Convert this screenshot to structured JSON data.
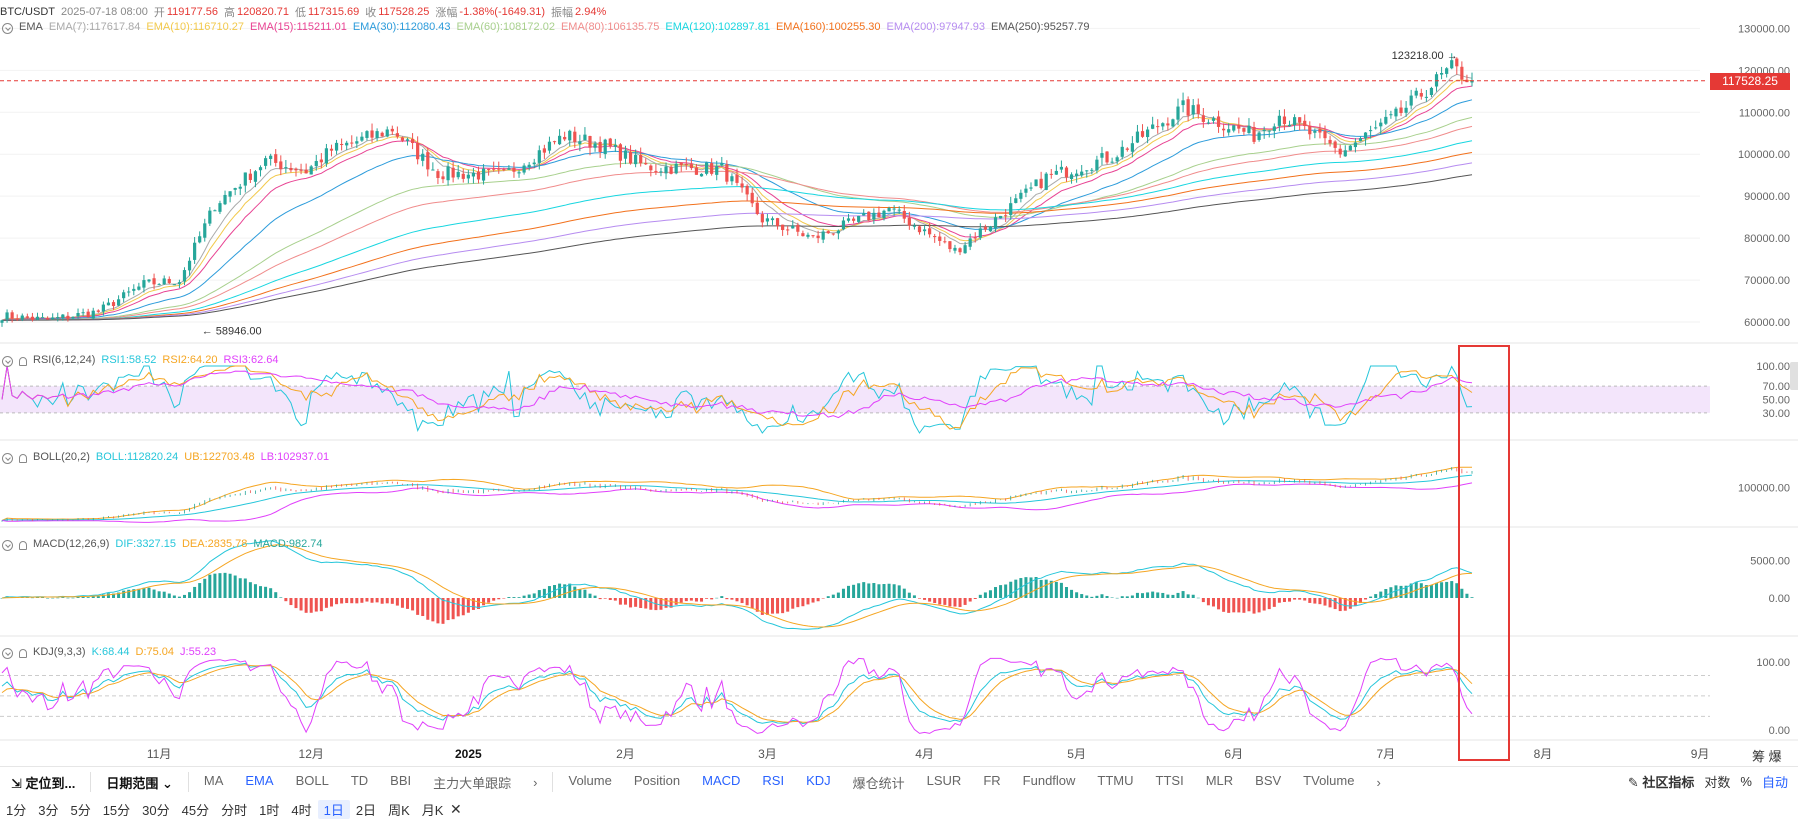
{
  "header": {
    "pair": "BTC/USDT",
    "datetime": "2025-07-18 08:00",
    "open_label": "开",
    "open": "119177.56",
    "high_label": "高",
    "high": "120820.71",
    "low_label": "低",
    "low": "117315.69",
    "close_label": "收",
    "close": "117528.25",
    "change_label": "涨幅",
    "change": "-1.38%(-1649.31)",
    "amp_label": "振幅",
    "amp": "2.94%"
  },
  "ema_legend": {
    "name": "EMA",
    "items": [
      {
        "label": "EMA(7):117617.84",
        "color": "#aaaaaa"
      },
      {
        "label": "EMA(10):116710.27",
        "color": "#f2c94c"
      },
      {
        "label": "EMA(15):115211.01",
        "color": "#e84393"
      },
      {
        "label": "EMA(30):112080.43",
        "color": "#2d9cdb"
      },
      {
        "label": "EMA(60):108172.02",
        "color": "#a8d08d"
      },
      {
        "label": "EMA(80):106135.75",
        "color": "#f08c8c"
      },
      {
        "label": "EMA(120):102897.81",
        "color": "#18d6e0"
      },
      {
        "label": "EMA(160):100255.30",
        "color": "#f2711c"
      },
      {
        "label": "EMA(200):97947.93",
        "color": "#b68cf0"
      },
      {
        "label": "EMA(250):95257.79",
        "color": "#555555"
      }
    ]
  },
  "rsi_legend": {
    "name": "RSI(6,12,24)",
    "items": [
      {
        "label": "RSI1:58.52",
        "color": "#26c6da"
      },
      {
        "label": "RSI2:64.20",
        "color": "#f5a623"
      },
      {
        "label": "RSI3:62.64",
        "color": "#e040fb"
      }
    ]
  },
  "boll_legend": {
    "name": "BOLL(20,2)",
    "items": [
      {
        "label": "BOLL:112820.24",
        "color": "#26c6da"
      },
      {
        "label": "UB:122703.48",
        "color": "#f5a623"
      },
      {
        "label": "LB:102937.01",
        "color": "#e040fb"
      }
    ]
  },
  "macd_legend": {
    "name": "MACD(12,26,9)",
    "items": [
      {
        "label": "DIF:3327.15",
        "color": "#26c6da"
      },
      {
        "label": "DEA:2835.78",
        "color": "#f5a623"
      },
      {
        "label": "MACD:982.74",
        "color": "#26a69a"
      }
    ]
  },
  "kdj_legend": {
    "name": "KDJ(9,3,3)",
    "items": [
      {
        "label": "K:68.44",
        "color": "#26c6da"
      },
      {
        "label": "D:75.04",
        "color": "#f5a623"
      },
      {
        "label": "J:55.23",
        "color": "#e040fb"
      }
    ]
  },
  "annotations": {
    "high_mark": "123218.00",
    "low_mark": "58946.00",
    "last_price": "117528.25"
  },
  "axes": {
    "price_ticks": [
      "130000.00",
      "120000.00",
      "110000.00",
      "100000.00",
      "90000.00",
      "80000.00",
      "70000.00",
      "60000.00"
    ],
    "rsi_ticks": [
      "100.00",
      "70.00",
      "50.00",
      "30.00"
    ],
    "boll_ticks": [
      "100000.00"
    ],
    "macd_ticks": [
      "5000.00",
      "0.00"
    ],
    "kdj_ticks": [
      "100.00",
      "0.00"
    ],
    "time_ticks": [
      "11月",
      "12月",
      "2025",
      "2月",
      "3月",
      "4月",
      "5月",
      "6月",
      "7月",
      "8月",
      "9月"
    ]
  },
  "toolbar": {
    "locate": "定位到...",
    "range": "日期范围",
    "main_indicators": [
      "MA",
      "EMA",
      "BOLL",
      "TD",
      "BBI",
      "主力大单跟踪"
    ],
    "sub_indicators": [
      "Volume",
      "Position",
      "MACD",
      "RSI",
      "KDJ",
      "爆仓统计",
      "LSUR",
      "FR",
      "Fundflow",
      "TTMU",
      "TTSI",
      "MLR",
      "BSV",
      "TVolume"
    ],
    "community": "社区指标",
    "log": "对数",
    "pct": "%",
    "auto": "自动",
    "extra": "筹 爆"
  },
  "intervals": [
    "1分",
    "3分",
    "5分",
    "15分",
    "30分",
    "45分",
    "分时",
    "1时",
    "4时",
    "1日",
    "2日",
    "周K",
    "月K"
  ],
  "active_interval": "1日",
  "chart_data": {
    "type": "candlestick",
    "title": "BTC/USDT",
    "x_range": [
      "2024-10-01",
      "2025-07-18"
    ],
    "ylim": [
      55000,
      132000
    ],
    "close_anchors": [
      [
        "2024-10-01",
        61500
      ],
      [
        "2024-10-10",
        60500
      ],
      [
        "2024-10-20",
        62500
      ],
      [
        "2024-10-29",
        69000
      ],
      [
        "2024-11-05",
        70000
      ],
      [
        "2024-11-12",
        88000
      ],
      [
        "2024-11-22",
        98500
      ],
      [
        "2024-11-30",
        96000
      ],
      [
        "2024-12-05",
        101000
      ],
      [
        "2024-12-17",
        106000
      ],
      [
        "2024-12-26",
        95500
      ],
      [
        "2025-01-08",
        95000
      ],
      [
        "2025-01-20",
        104500
      ],
      [
        "2025-01-28",
        102000
      ],
      [
        "2025-02-05",
        97000
      ],
      [
        "2025-02-20",
        96500
      ],
      [
        "2025-02-28",
        84500
      ],
      [
        "2025-03-10",
        80000
      ],
      [
        "2025-03-25",
        87000
      ],
      [
        "2025-04-07",
        77000
      ],
      [
        "2025-04-15",
        84500
      ],
      [
        "2025-04-25",
        94500
      ],
      [
        "2025-05-08",
        99500
      ],
      [
        "2025-05-22",
        111000
      ],
      [
        "2025-06-05",
        104500
      ],
      [
        "2025-06-10",
        109500
      ],
      [
        "2025-06-22",
        100500
      ],
      [
        "2025-07-03",
        109000
      ],
      [
        "2025-07-11",
        117500
      ],
      [
        "2025-07-14",
        120500
      ],
      [
        "2025-07-18",
        117528
      ]
    ],
    "ema_last": [
      117617.84,
      116710.27,
      115211.01,
      112080.43,
      108172.02,
      106135.75,
      102897.81,
      100255.3,
      97947.93,
      95257.79
    ],
    "high": 123218.0,
    "low": 58946.0,
    "last": 117528.25,
    "rsi_last": [
      58.52,
      64.2,
      62.64
    ],
    "boll_last": [
      112820.24,
      122703.48,
      102937.01
    ],
    "macd_last": [
      3327.15,
      2835.78,
      982.74
    ],
    "kdj_last": [
      68.44,
      75.04,
      55.23
    ]
  }
}
